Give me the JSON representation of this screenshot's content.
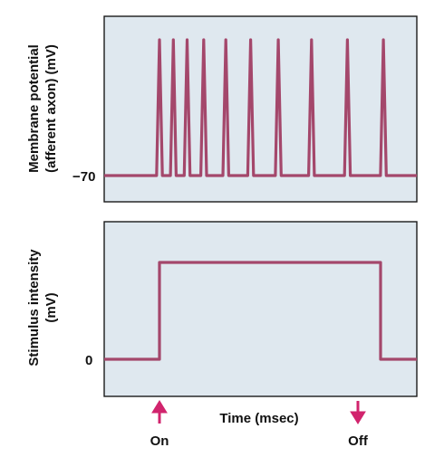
{
  "top_panel": {
    "ylabel_line1": "Membrane potential",
    "ylabel_line2": "(afferent axon) (mV)",
    "tick_label": "−70",
    "spike_times": [
      1.0,
      1.25,
      1.5,
      1.8,
      2.2,
      2.65,
      3.15,
      3.75,
      4.4,
      5.05
    ],
    "resting_level": -70
  },
  "bottom_panel": {
    "ylabel_line1": "Stimulus intensity",
    "ylabel_line2": "(mV)",
    "tick_label": "0",
    "stimulus_on": 1.0,
    "stimulus_off": 5.0,
    "baseline": 0,
    "plateau": 1
  },
  "x_axis": {
    "label": "Time (msec)"
  },
  "markers": {
    "on_label": "On",
    "off_label": "Off"
  },
  "colors": {
    "trace": "#a4476b",
    "arrow": "#d1246d",
    "panel_background": "#dfe8ef"
  }
}
